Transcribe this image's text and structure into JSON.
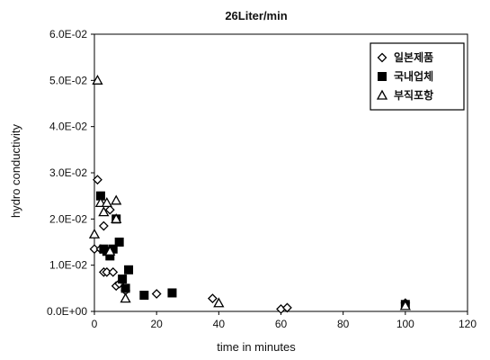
{
  "chart_data": {
    "type": "scatter",
    "title": "26Liter/min",
    "xlabel": "time in minutes",
    "ylabel": "hydro conductivity",
    "xlim": [
      0,
      120
    ],
    "ylim": [
      0,
      0.06
    ],
    "x_ticks": [
      0,
      20,
      40,
      60,
      80,
      100,
      120
    ],
    "x_tick_labels": [
      "0",
      "20",
      "40",
      "60",
      "80",
      "100",
      "120"
    ],
    "y_ticks": [
      0,
      0.01,
      0.02,
      0.03,
      0.04,
      0.05,
      0.06
    ],
    "y_tick_labels": [
      "0.0E+00",
      "1.0E-02",
      "2.0E-02",
      "3.0E-02",
      "4.0E-02",
      "5.0E-02",
      "6.0E-02"
    ],
    "grid": false,
    "legend_position": "top-right",
    "series": [
      {
        "name": "일본제품",
        "marker": "diamond-open",
        "points": [
          [
            0,
            0.0135
          ],
          [
            1,
            0.0285
          ],
          [
            2,
            0.0135
          ],
          [
            3,
            0.0185
          ],
          [
            3,
            0.0085
          ],
          [
            4,
            0.0085
          ],
          [
            5,
            0.022
          ],
          [
            5,
            0.013
          ],
          [
            6,
            0.0085
          ],
          [
            7,
            0.0055
          ],
          [
            8,
            0.006
          ],
          [
            10,
            0.0045
          ],
          [
            20,
            0.0038
          ],
          [
            38,
            0.0028
          ],
          [
            60,
            0.0005
          ],
          [
            62,
            0.0008
          ],
          [
            100,
            0.0018
          ]
        ]
      },
      {
        "name": "국내업체",
        "marker": "square-filled",
        "points": [
          [
            2,
            0.025
          ],
          [
            3,
            0.0135
          ],
          [
            4,
            0.013
          ],
          [
            5,
            0.012
          ],
          [
            6,
            0.0135
          ],
          [
            7,
            0.02
          ],
          [
            8,
            0.015
          ],
          [
            9,
            0.007
          ],
          [
            10,
            0.005
          ],
          [
            11,
            0.009
          ],
          [
            16,
            0.0035
          ],
          [
            25,
            0.004
          ],
          [
            100,
            0.0015
          ]
        ]
      },
      {
        "name": "부직포항",
        "marker": "triangle-open",
        "points": [
          [
            0,
            0.0167
          ],
          [
            1,
            0.05
          ],
          [
            2,
            0.0235
          ],
          [
            3,
            0.0215
          ],
          [
            4,
            0.0235
          ],
          [
            5,
            0.013
          ],
          [
            7,
            0.024
          ],
          [
            7,
            0.02
          ],
          [
            10,
            0.0028
          ],
          [
            40,
            0.0018
          ],
          [
            100,
            0.0012
          ]
        ]
      }
    ]
  }
}
